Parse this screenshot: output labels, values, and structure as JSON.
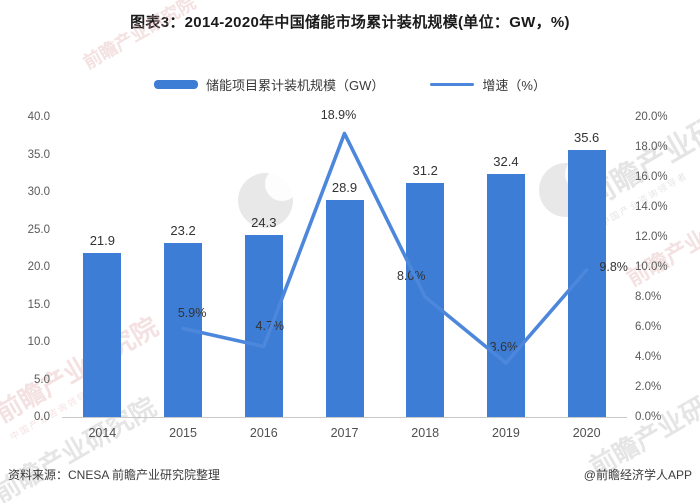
{
  "title": "图表3：2014-2020年中国储能市场累计装机规模(单位：GW，%)",
  "legend": [
    {
      "label": "储能项目累计装机规模（GW）",
      "marker": "bar-swatch-icon"
    },
    {
      "label": "增速（%）",
      "marker": "line-swatch-icon"
    }
  ],
  "footer": {
    "source": "资料来源：CNESA 前瞻产业研究院整理",
    "credit": "@前瞻经济学人APP"
  },
  "watermark": {
    "text": "前瞻产业研究院",
    "subtext": "中国产业咨询领导者"
  },
  "colors": {
    "bar": "#3d7dd6",
    "line": "#4c87db",
    "axis_text": "#595959",
    "label_text": "#333333",
    "axis_line": "#c9c9c9"
  },
  "chart_data": {
    "type": "combo",
    "title": "图表3：2014-2020年中国储能市场累计装机规模(单位：GW，%)",
    "categories": [
      "2014",
      "2015",
      "2016",
      "2017",
      "2018",
      "2019",
      "2020"
    ],
    "series": [
      {
        "name": "储能项目累计装机规模（GW）",
        "type": "bar",
        "axis": "left",
        "values": [
          21.9,
          23.2,
          24.3,
          28.9,
          31.2,
          32.4,
          35.6
        ],
        "labels": [
          "21.9",
          "23.2",
          "24.3",
          "28.9",
          "31.2",
          "32.4",
          "35.6"
        ]
      },
      {
        "name": "增速（%）",
        "type": "line",
        "axis": "right",
        "values": [
          null,
          5.9,
          4.7,
          18.9,
          8.0,
          3.6,
          9.8
        ],
        "labels": [
          null,
          "5.9%",
          "4.7%",
          "18.9%",
          "8.0%",
          "3.6%",
          "9.8%"
        ]
      }
    ],
    "left_axis": {
      "min": 0,
      "max": 40,
      "step": 5,
      "ticks": [
        "0.0",
        "5.0",
        "10.0",
        "15.0",
        "20.0",
        "25.0",
        "30.0",
        "35.0",
        "40.0"
      ]
    },
    "right_axis": {
      "min": 0,
      "max": 20,
      "step": 2,
      "ticks": [
        "0.0%",
        "2.0%",
        "4.0%",
        "6.0%",
        "8.0%",
        "10.0%",
        "12.0%",
        "14.0%",
        "16.0%",
        "18.0%",
        "20.0%"
      ]
    },
    "grid": false,
    "legend_position": "top"
  }
}
